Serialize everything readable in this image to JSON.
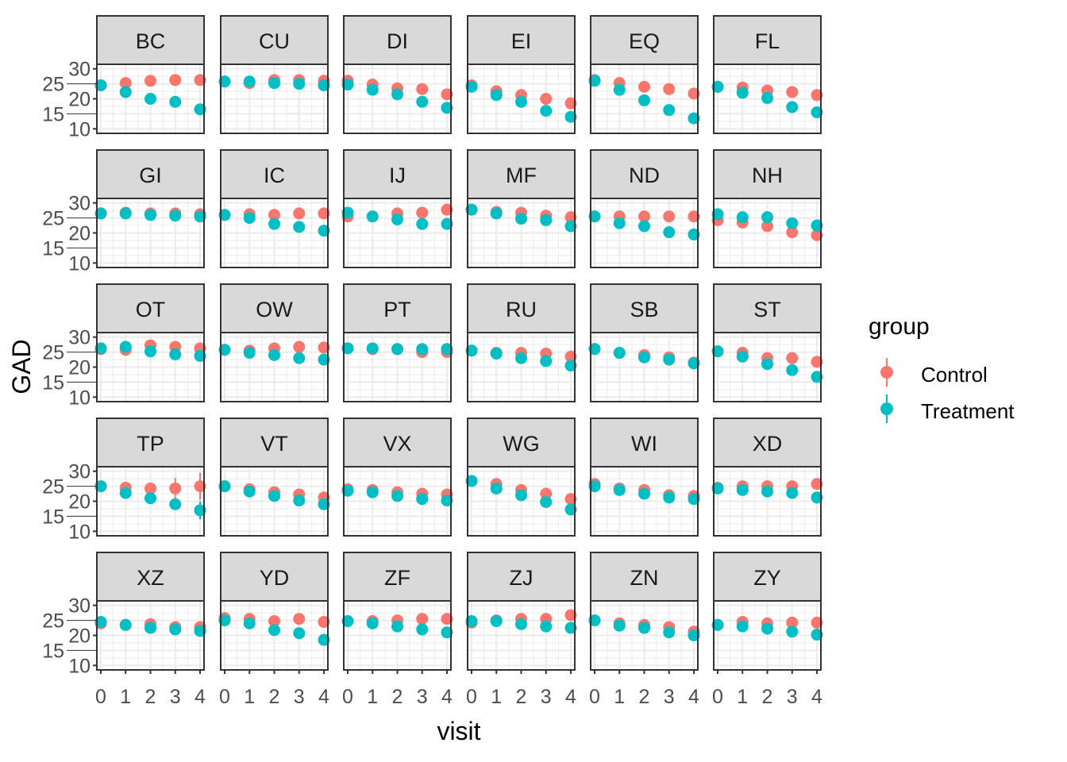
{
  "chart_data": {
    "type": "scatter",
    "facet_by": "site",
    "xlabel": "visit",
    "ylabel": "GAD",
    "x": [
      0,
      1,
      2,
      3,
      4
    ],
    "x_ticks": [
      "0",
      "1",
      "2",
      "3",
      "4"
    ],
    "y_ticks": [
      "10",
      "15",
      "20",
      "25",
      "30"
    ],
    "ylim": [
      8.5,
      31.5
    ],
    "grid": true,
    "legend": {
      "title": "group",
      "placement": "right",
      "entries": [
        "Control",
        "Treatment"
      ]
    },
    "colors": {
      "Control": "#F8766D",
      "Treatment": "#00BFC4",
      "strip": "#D9D9D9",
      "grid": "#EBEBEB",
      "border": "#333333"
    },
    "panels": [
      {
        "name": "BC",
        "Control": [
          24.5,
          25.25,
          26,
          26.25,
          26.25
        ],
        "Treatment": [
          24.5,
          22.25,
          20,
          19,
          16.5
        ]
      },
      {
        "name": "CU",
        "Control": [
          25.75,
          25.25,
          26.25,
          26.25,
          26
        ],
        "Treatment": [
          25.75,
          25.75,
          25.25,
          25,
          24.5
        ]
      },
      {
        "name": "DI",
        "Control": [
          26,
          24.75,
          23.5,
          23.25,
          21.5
        ],
        "Treatment": [
          24.75,
          23,
          21.5,
          19,
          17
        ]
      },
      {
        "name": "EI",
        "Control": [
          24.5,
          22.5,
          21.25,
          20,
          18.5
        ],
        "Treatment": [
          24,
          21.25,
          19,
          16,
          14
        ]
      },
      {
        "name": "EQ",
        "Control": [
          26.25,
          25.25,
          24,
          23.25,
          21.75
        ],
        "Treatment": [
          26,
          23,
          19.5,
          16.25,
          13.5
        ]
      },
      {
        "name": "FL",
        "Control": [
          24,
          23.75,
          22.75,
          22.25,
          21.25
        ],
        "Treatment": [
          24,
          22,
          20.25,
          17.25,
          15.5
        ]
      },
      {
        "name": "GI",
        "Control": [
          26.5,
          26.75,
          26.5,
          26.5,
          26.25
        ],
        "Treatment": [
          26.5,
          26.5,
          26,
          25.75,
          25.5
        ]
      },
      {
        "name": "IC",
        "Control": [
          26,
          26.25,
          26,
          26.5,
          26.5
        ],
        "Treatment": [
          26,
          25,
          23,
          22,
          20.75
        ]
      },
      {
        "name": "IJ",
        "Control": [
          25.5,
          25.5,
          26.5,
          26.75,
          27.75
        ],
        "Treatment": [
          26.75,
          25.5,
          24.5,
          23,
          23
        ]
      },
      {
        "name": "MF",
        "Control": [
          27.75,
          27,
          26.75,
          25.75,
          25.25
        ],
        "Treatment": [
          27.75,
          26.5,
          24.75,
          24.25,
          22.25
        ]
      },
      {
        "name": "ND",
        "Control": [
          25.5,
          25.5,
          25.5,
          25.5,
          25.5
        ],
        "Treatment": [
          25.5,
          23.25,
          22.25,
          20.25,
          19.5
        ]
      },
      {
        "name": "NH",
        "Control": [
          24.25,
          23.5,
          22.25,
          20.25,
          19.25
        ],
        "Treatment": [
          26.25,
          25.25,
          25.25,
          23.25,
          22.5
        ],
        "Treatment_err": [
          0,
          0,
          0.5,
          1.5,
          2
        ]
      },
      {
        "name": "OT",
        "Control": [
          26,
          25.75,
          27.25,
          26.75,
          26.25
        ],
        "Treatment": [
          26.25,
          26.75,
          25.25,
          24.25,
          23.75
        ]
      },
      {
        "name": "OW",
        "Control": [
          25.75,
          25.5,
          26.25,
          26.75,
          26.5
        ],
        "Treatment": [
          25.75,
          24.75,
          24,
          23,
          22.5
        ]
      },
      {
        "name": "PT",
        "Control": [
          26.25,
          26,
          26,
          25,
          25
        ],
        "Treatment": [
          26.25,
          26.25,
          26,
          26,
          26
        ]
      },
      {
        "name": "RU",
        "Control": [
          25.5,
          24.75,
          24.75,
          24.5,
          23.5
        ],
        "Treatment": [
          25.5,
          24.5,
          23,
          22,
          20.5
        ]
      },
      {
        "name": "SB",
        "Control": [
          26,
          24.75,
          24,
          23.25,
          21.5
        ],
        "Treatment": [
          26,
          24.75,
          23.25,
          22.5,
          21.25
        ]
      },
      {
        "name": "ST",
        "Control": [
          25.25,
          24.75,
          23,
          23,
          21.75
        ],
        "Treatment": [
          25.25,
          23.5,
          21,
          19,
          16.75
        ]
      },
      {
        "name": "TP",
        "Control": [
          25,
          24.5,
          24.25,
          24.25,
          25
        ],
        "Treatment": [
          25,
          22.75,
          21,
          19,
          17
        ],
        "Control_err": [
          0,
          0.5,
          2,
          3.5,
          4.5
        ],
        "Treatment_err": [
          0,
          0.5,
          0.5,
          1,
          3
        ]
      },
      {
        "name": "VT",
        "Control": [
          25,
          24,
          23,
          22.25,
          21.25
        ],
        "Treatment": [
          25,
          23.25,
          21.75,
          20.25,
          19
        ]
      },
      {
        "name": "VX",
        "Control": [
          24,
          23.75,
          23,
          22.5,
          22.25
        ],
        "Treatment": [
          23.5,
          23,
          21.75,
          20.75,
          20.25
        ]
      },
      {
        "name": "WG",
        "Control": [
          26.75,
          25.75,
          23.75,
          22.5,
          20.75
        ],
        "Treatment": [
          26.75,
          24.25,
          22,
          19.75,
          17.25
        ]
      },
      {
        "name": "WI",
        "Control": [
          25.75,
          24.25,
          23.75,
          22,
          21.75
        ],
        "Treatment": [
          25,
          23.75,
          22.5,
          21.25,
          20.75
        ]
      },
      {
        "name": "XD",
        "Control": [
          24.5,
          25,
          25,
          25,
          25.75
        ],
        "Treatment": [
          24.25,
          23.75,
          23.25,
          22.75,
          21.25
        ]
      },
      {
        "name": "XZ",
        "Control": [
          24,
          23.5,
          23.75,
          22.75,
          22.75
        ],
        "Treatment": [
          24.5,
          23.5,
          22.5,
          22,
          21.5
        ]
      },
      {
        "name": "YD",
        "Control": [
          25.75,
          25.5,
          24.75,
          25.5,
          24.5
        ],
        "Treatment": [
          25,
          24,
          21.75,
          20.75,
          18.5
        ]
      },
      {
        "name": "ZF",
        "Control": [
          24.75,
          24.75,
          25,
          25.5,
          25.5
        ],
        "Treatment": [
          24.75,
          24,
          23,
          22,
          21
        ]
      },
      {
        "name": "ZJ",
        "Control": [
          24.25,
          25,
          25.5,
          25.5,
          26.75
        ],
        "Treatment": [
          24.75,
          24.75,
          23.75,
          23,
          22.5
        ]
      },
      {
        "name": "ZN",
        "Control": [
          25,
          24,
          23.5,
          22.75,
          21.25
        ],
        "Treatment": [
          25,
          23.25,
          22.5,
          21,
          20
        ]
      },
      {
        "name": "ZY",
        "Control": [
          23.5,
          24.5,
          24,
          24.25,
          24.25
        ],
        "Treatment": [
          23.5,
          23,
          22.25,
          21.25,
          20.25
        ]
      }
    ]
  }
}
